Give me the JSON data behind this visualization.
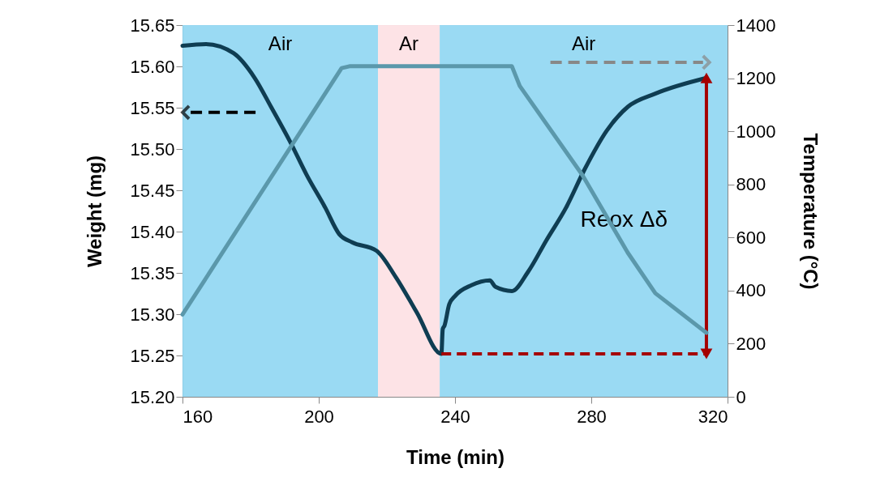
{
  "chart_data": {
    "type": "line",
    "xlabel": "Time (min)",
    "ylabel": "Weight (mg)",
    "y2label": "Temperature (°C)",
    "xlim": [
      160,
      320
    ],
    "xticks": [
      160,
      200,
      240,
      280,
      320
    ],
    "ylim": [
      15.2,
      15.65
    ],
    "yticks": [
      {
        "value": 15.2,
        "label": "15.20"
      },
      {
        "value": 15.25,
        "label": "15.25"
      },
      {
        "value": 15.3,
        "label": "15.30"
      },
      {
        "value": 15.35,
        "label": "15.35"
      },
      {
        "value": 15.4,
        "label": "15.40"
      },
      {
        "value": 15.45,
        "label": "15.45"
      },
      {
        "value": 15.5,
        "label": "15.50"
      },
      {
        "value": 15.55,
        "label": "15.55"
      },
      {
        "value": 15.6,
        "label": "15.60"
      },
      {
        "value": 15.65,
        "label": "15.65"
      }
    ],
    "y2lim": [
      0,
      1400
    ],
    "y2ticks": [
      0,
      200,
      400,
      600,
      800,
      {
        "value": 1000,
        "label": "1000"
      },
      {
        "value": 1200,
        "label": "1200"
      },
      {
        "value": 1400,
        "label": "1400"
      }
    ],
    "series": [
      {
        "color": "#0f3d52",
        "x": [
          160,
          166.9,
          175,
          181.2,
          186,
          191.7,
          196.4,
          201.9,
          206,
          209.8,
          216.9,
          222.6,
          228.8,
          236,
          236.4,
          236.9,
          238.3,
          240,
          244.8,
          250.2,
          251.9,
          256.7,
          261.4,
          266.9,
          272.6,
          278,
          284.5,
          290.7,
          298.8,
          313.8
        ],
        "values": [
          15.625,
          15.627,
          15.616,
          15.586,
          15.551,
          15.508,
          15.469,
          15.429,
          15.397,
          15.387,
          15.377,
          15.345,
          15.302,
          15.252,
          15.282,
          15.286,
          15.312,
          15.322,
          15.335,
          15.341,
          15.333,
          15.328,
          15.351,
          15.39,
          15.429,
          15.475,
          15.522,
          15.551,
          15.567,
          15.586
        ]
      },
      {
        "color": "#5b98ab",
        "axis": "y2",
        "x": [
          160,
          206.7,
          209,
          256.7,
          259,
          277.4,
          290.7,
          298.8,
          313.8
        ],
        "values": [
          310,
          1238,
          1245,
          1245,
          1171,
          835,
          543,
          390,
          241
        ]
      }
    ],
    "bands": [
      {
        "axis": "x",
        "from": 160,
        "to": 217.4,
        "label": "Air",
        "color": "#8fd6f2"
      },
      {
        "axis": "x",
        "from": 217.4,
        "to": 235.5,
        "label": "Ar",
        "color": "#fde0e3"
      },
      {
        "axis": "x",
        "from": 235.5,
        "to": 320,
        "label": "Air",
        "color": "#8fd6f2"
      }
    ],
    "annotations": [
      "Reox Δδ"
    ],
    "grid": false,
    "line_style": "solid",
    "marker": "none"
  }
}
